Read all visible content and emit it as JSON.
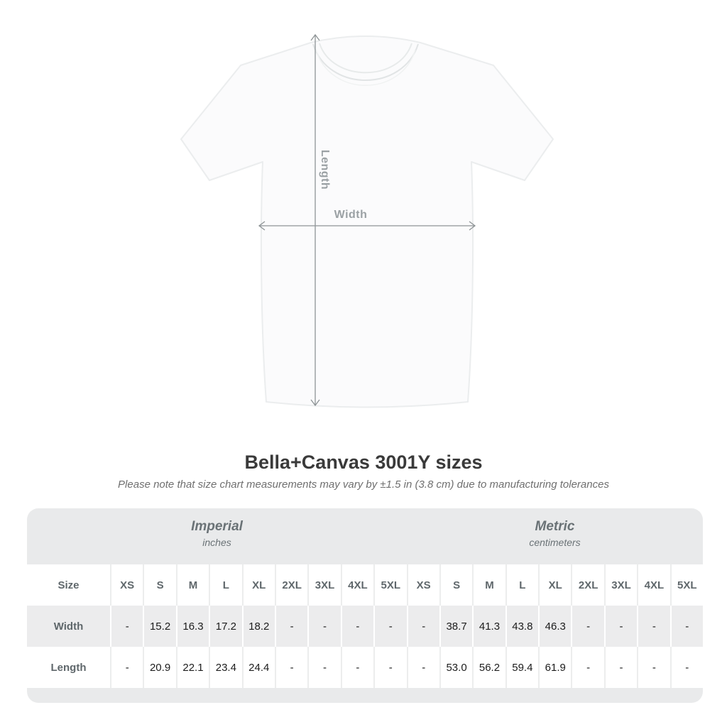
{
  "page": {
    "background": "#ffffff"
  },
  "diagram": {
    "illustration": "white-crew-neck-tshirt-front",
    "length_label": "Length",
    "width_label": "Width",
    "arrow_color": "#8e9496",
    "label_color": "#9ba1a4"
  },
  "heading": {
    "title": "Bella+Canvas 3001Y sizes",
    "subtitle": "Please note that size chart measurements may vary by ±1.5 in (3.8 cm) due to manufacturing tolerances"
  },
  "chart_data": {
    "type": "table",
    "title": "Bella+Canvas 3001Y sizes",
    "unit_groups": [
      {
        "label": "Imperial",
        "unit": "inches"
      },
      {
        "label": "Metric",
        "unit": "centimeters"
      }
    ],
    "columns": [
      "Size",
      "XS",
      "S",
      "M",
      "L",
      "XL",
      "2XL",
      "3XL",
      "4XL",
      "5XL",
      "XS",
      "S",
      "M",
      "L",
      "XL",
      "2XL",
      "3XL",
      "4XL",
      "5XL"
    ],
    "rows": [
      {
        "label": "Width",
        "imperial": [
          "-",
          "15.2",
          "16.3",
          "17.2",
          "18.2",
          "-",
          "-",
          "-",
          "-"
        ],
        "metric": [
          "-",
          "38.7",
          "41.3",
          "43.8",
          "46.3",
          "-",
          "-",
          "-",
          "-"
        ]
      },
      {
        "label": "Length",
        "imperial": [
          "-",
          "20.9",
          "22.1",
          "23.4",
          "24.4",
          "-",
          "-",
          "-",
          "-"
        ],
        "metric": [
          "-",
          "53.0",
          "56.2",
          "59.4",
          "61.9",
          "-",
          "-",
          "-",
          "-"
        ]
      }
    ]
  },
  "colors": {
    "table_band": "#e9eaeb",
    "row_stripe": "#ececed",
    "header_text": "#6a7276",
    "value_text": "#1c1c1c",
    "title_text": "#3a3a3a",
    "shirt_outline": "#ebedee"
  }
}
